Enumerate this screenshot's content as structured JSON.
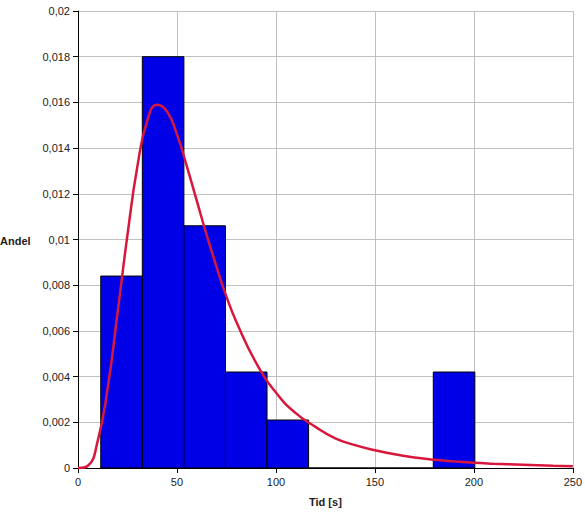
{
  "chart_data": {
    "type": "histogram",
    "x_label": "Tid [s]",
    "y_label": "Andel",
    "bins": [
      11.5,
      32.5,
      53.5,
      74.5,
      95.5,
      116.5,
      137.5,
      158.5,
      179.5,
      200.5
    ],
    "values": [
      0.0084,
      0.018,
      0.0106,
      0.0042,
      0.0021,
      0,
      0,
      0,
      0.0042
    ],
    "color": "#0000e6",
    "series": [
      {
        "type": "line",
        "color": "#d9163c",
        "x": [
          0,
          5,
          10,
          15,
          20,
          25,
          30,
          35,
          40,
          45,
          50,
          55,
          60,
          65,
          70,
          75,
          80,
          90,
          100,
          110,
          120,
          130,
          140,
          150,
          160,
          170,
          180,
          190,
          200,
          210,
          225,
          240,
          250
        ],
        "values": [
          0,
          0.0001,
          0.0012,
          0.0035,
          0.0068,
          0.0102,
          0.0132,
          0.0152,
          0.0159,
          0.0156,
          0.0146,
          0.0132,
          0.0117,
          0.0102,
          0.0088,
          0.0075,
          0.0064,
          0.0046,
          0.0033,
          0.0024,
          0.0018,
          0.0013,
          0.001,
          0.00078,
          0.0006,
          0.00046,
          0.00036,
          0.00029,
          0.00023,
          0.00019,
          0.00014,
          0.0001,
          8e-05
        ]
      }
    ],
    "xlim": [
      0,
      250
    ],
    "xticks": [
      0,
      50,
      100,
      150,
      200,
      250
    ],
    "ylim": [
      0,
      0.02
    ],
    "yticks": [
      0,
      {
        "value": 0.002,
        "label": "0,002"
      },
      {
        "value": 0.004,
        "label": "0,004"
      },
      {
        "value": 0.006,
        "label": "0,006"
      },
      {
        "value": 0.008,
        "label": "0,008"
      },
      {
        "value": 0.01,
        "label": "0,01"
      },
      {
        "value": 0.012,
        "label": "0,012"
      },
      {
        "value": 0.014,
        "label": "0,014"
      },
      {
        "value": 0.016,
        "label": "0,016"
      },
      {
        "value": 0.018,
        "label": "0,018"
      },
      {
        "value": 0.02,
        "label": "0,02"
      }
    ],
    "grid": true
  }
}
